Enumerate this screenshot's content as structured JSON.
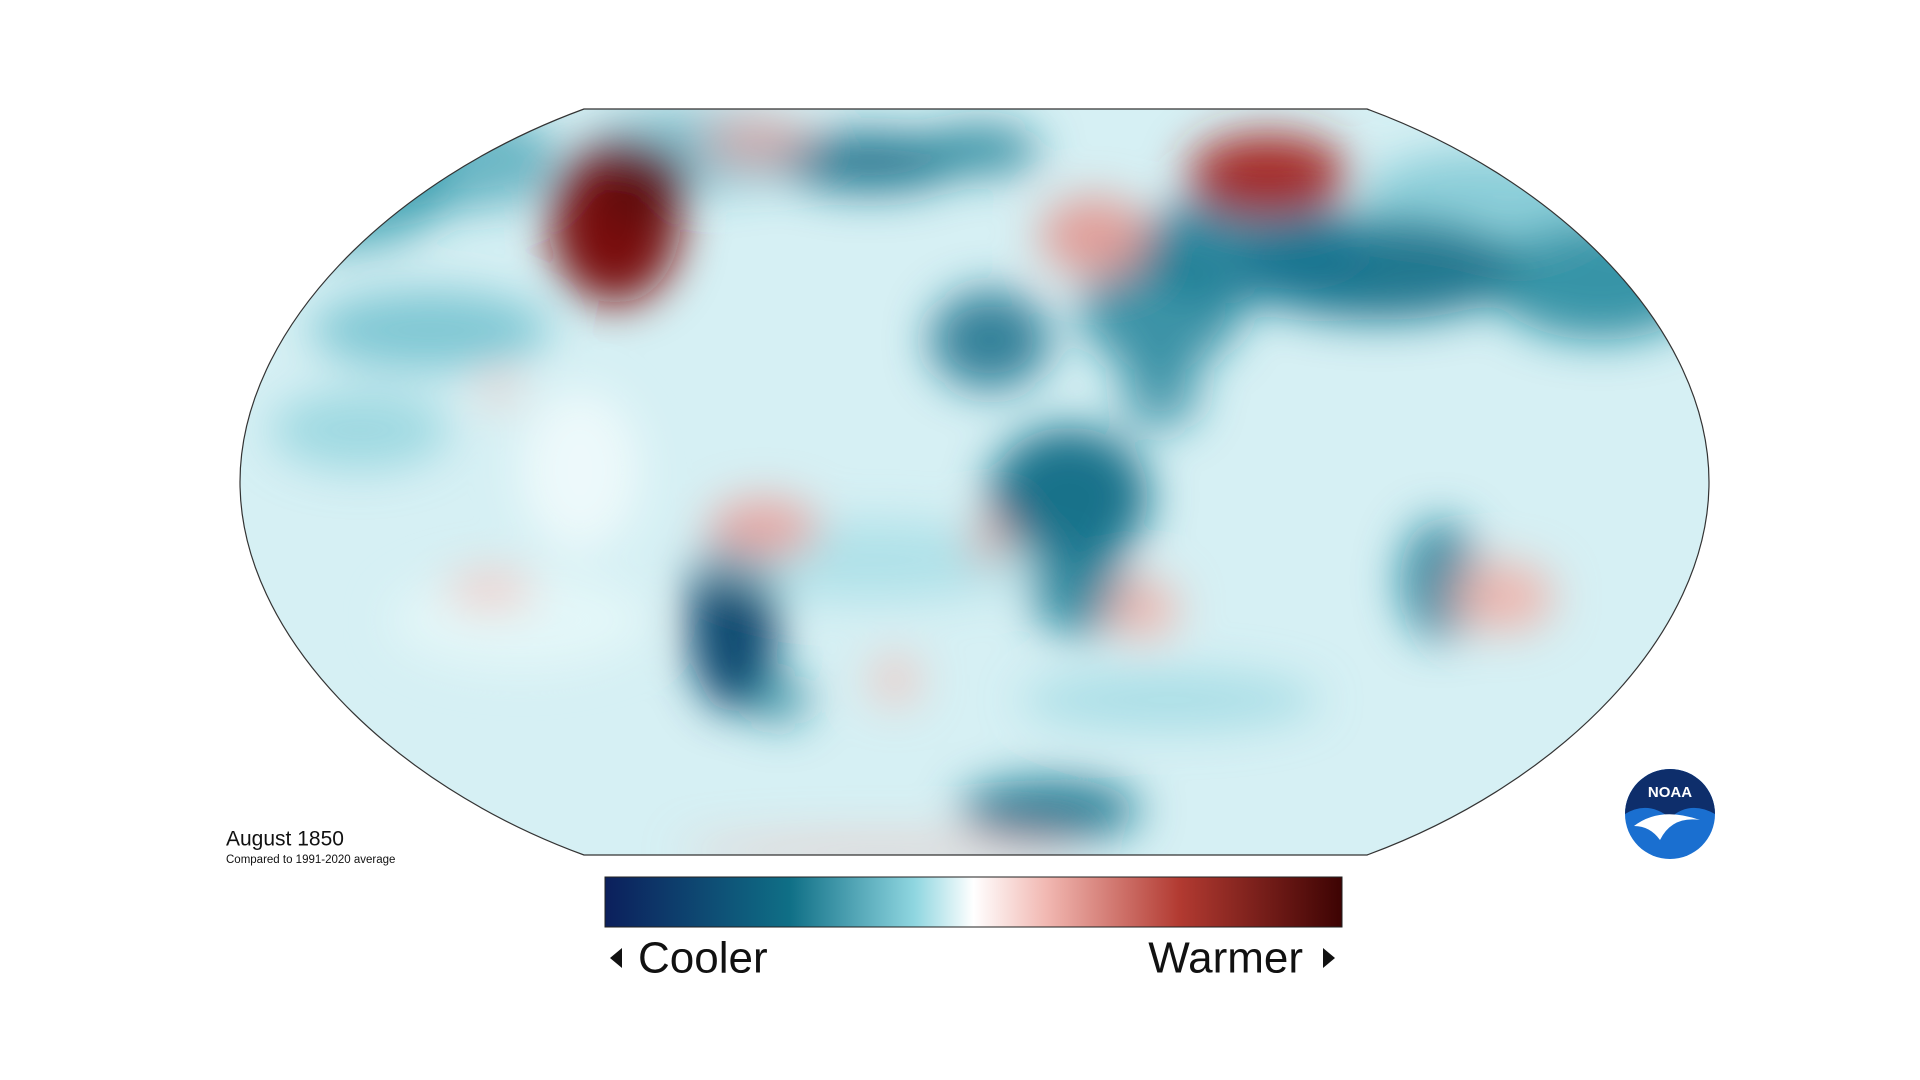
{
  "caption": {
    "title": "August 1850",
    "subtitle": "Compared to 1991-2020 average"
  },
  "legend": {
    "low": "Cooler",
    "high": "Warmer"
  },
  "logo": {
    "text": "NOAA"
  }
}
